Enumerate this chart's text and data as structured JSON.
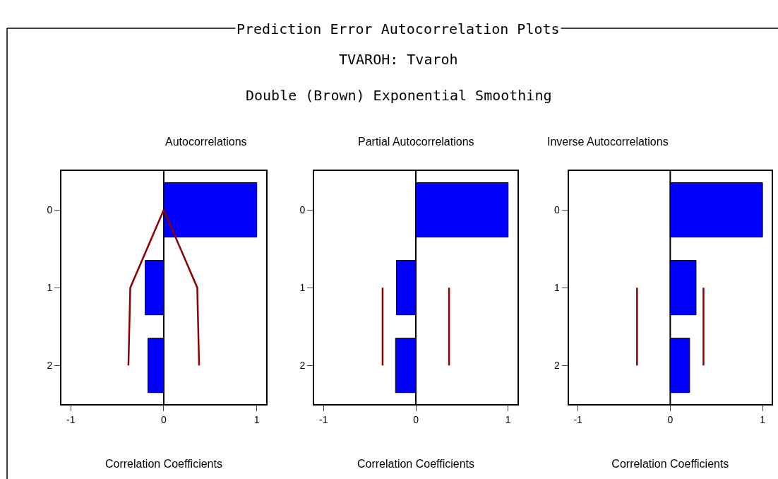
{
  "chart_data": [
    {
      "type": "bar",
      "orientation": "horizontal",
      "title": "Autocorrelations",
      "xlabel": "Correlation Coefficients",
      "annotations": [
        "Prediction Error Autocorrelation Plots",
        "TVAROH: Tvaroh",
        "Double (Brown) Exponential Smoothing"
      ],
      "categories": [
        "0",
        "1",
        "2"
      ],
      "series": [
        {
          "color": "#0000ff",
          "values": [
            1.0,
            -0.2,
            -0.17
          ]
        },
        {
          "type": "line",
          "color": "#8b0000",
          "values": [
            0,
            -0.36,
            -0.38
          ]
        },
        {
          "type": "line",
          "color": "#8b0000",
          "values": [
            0,
            0.36,
            0.38
          ]
        }
      ],
      "ref_lines": [
        {
          "axis": "x",
          "value": 0,
          "color": "#000000"
        }
      ],
      "xlim": [
        -1.1,
        1.1
      ],
      "xticks": [
        -1,
        0,
        1
      ]
    },
    {
      "type": "bar",
      "orientation": "horizontal",
      "title": "Partial Autocorrelations",
      "xlabel": "Correlation Coefficients",
      "categories": [
        "0",
        "1",
        "2"
      ],
      "series": [
        {
          "color": "#0000ff",
          "values": [
            1.0,
            -0.21,
            -0.22
          ]
        },
        {
          "type": "line",
          "color": "#8b0000",
          "values": [
            null,
            -0.36,
            -0.36
          ]
        },
        {
          "type": "line",
          "color": "#8b0000",
          "values": [
            null,
            0.36,
            0.36
          ]
        }
      ],
      "ref_lines": [
        {
          "axis": "x",
          "value": 0,
          "color": "#000000"
        }
      ],
      "xlim": [
        -1.1,
        1.1
      ],
      "xticks": [
        -1,
        0,
        1
      ]
    },
    {
      "type": "bar",
      "orientation": "horizontal",
      "title": "Inverse Autocorrelations",
      "xlabel": "Correlation Coefficients",
      "categories": [
        "0",
        "1",
        "2"
      ],
      "series": [
        {
          "color": "#0000ff",
          "values": [
            1.0,
            0.28,
            0.21
          ]
        },
        {
          "type": "line",
          "color": "#8b0000",
          "values": [
            null,
            -0.36,
            -0.36
          ]
        },
        {
          "type": "line",
          "color": "#8b0000",
          "values": [
            null,
            0.36,
            0.36
          ]
        }
      ],
      "ref_lines": [
        {
          "axis": "x",
          "value": 0,
          "color": "#000000"
        }
      ],
      "xlim": [
        -1.1,
        1.1
      ],
      "xticks": [
        -1,
        0,
        1
      ]
    }
  ]
}
